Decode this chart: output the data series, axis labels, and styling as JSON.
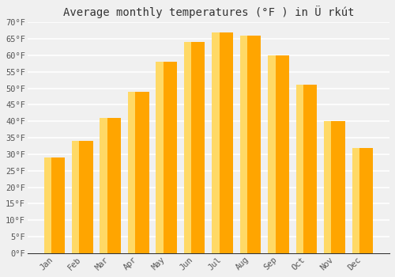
{
  "title": "Average monthly temperatures (°F ) in Ü rkút",
  "months": [
    "Jan",
    "Feb",
    "Mar",
    "Apr",
    "May",
    "Jun",
    "Jul",
    "Aug",
    "Sep",
    "Oct",
    "Nov",
    "Dec"
  ],
  "values": [
    29,
    34,
    41,
    49,
    58,
    64,
    67,
    66,
    60,
    51,
    40,
    32
  ],
  "bar_color_main": "#FFA500",
  "bar_color_light": "#FFD966",
  "ylim": [
    0,
    70
  ],
  "yticks": [
    0,
    5,
    10,
    15,
    20,
    25,
    30,
    35,
    40,
    45,
    50,
    55,
    60,
    65,
    70
  ],
  "ylabel_suffix": "°F",
  "background_color": "#f0f0f0",
  "grid_color": "#ffffff",
  "title_fontsize": 10,
  "tick_fontsize": 7.5,
  "font_family": "monospace"
}
